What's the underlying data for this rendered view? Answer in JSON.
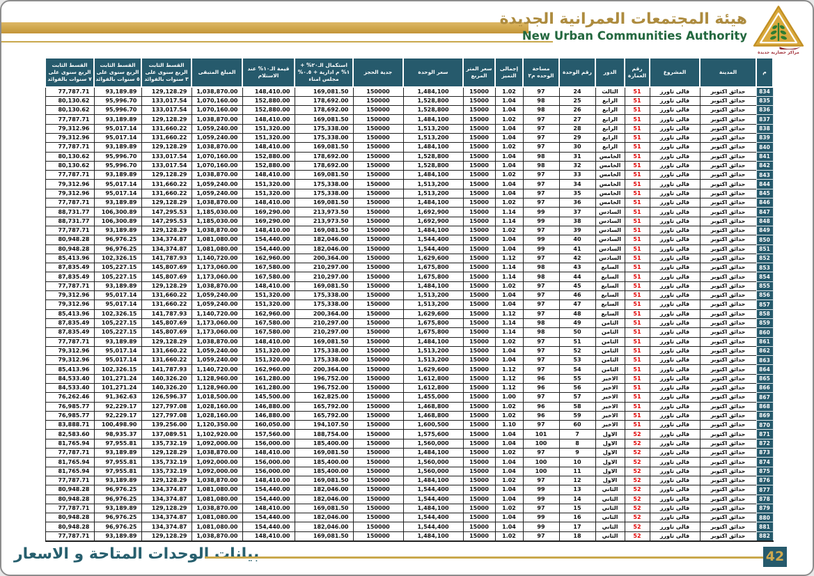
{
  "header": {
    "title_ar": "هيئة المجتمعات العمرانية الجديدة",
    "title_en": "New Urban Communities Authority",
    "logo_caption": "مراكز حضارية جديدة"
  },
  "footer": {
    "caption": "بيانات الوحدات المتاحة و الاسعار",
    "page_number": "42"
  },
  "colors": {
    "teal": "#265a6c",
    "gold": "#c9a84c",
    "red": "#e00000",
    "green": "#23683f",
    "title_gold": "#ad8b3e"
  },
  "table": {
    "headers": [
      "م",
      "المدينة",
      "المشروع",
      "رقم العمارة",
      "الدور",
      "رقم الوحدة",
      "مساحة الوحده م٢",
      "إجمالى التميز",
      "سعر المتر المربع",
      "سعر الوحدة",
      "جدية الحجز",
      "استكمال الـ٢٠% + ١% م ادارية + ٠.٥% مجلس امناء",
      "قيمة الـ١٠% عند الاستلام",
      "المبلغ المتبقى",
      "القسط الثابت الربع سنوى على ٣ سنوات بالفوائد",
      "القسط الثابت الربع سنوى على ٥ سنوات بالفوائد",
      "القسط الثابت الربع سنوى على ٧ سنوات بالفوائد"
    ],
    "rows": [
      [
        "834",
        "حدائق اكتوبر",
        "فالى تاورز",
        "51",
        "الثالث",
        "24",
        "97",
        "1.02",
        "15000",
        "1,484,100",
        "150000",
        "169,081.50",
        "148,410.00",
        "1,038,870.00",
        "129,128.29",
        "93,189.89",
        "77,787.71"
      ],
      [
        "835",
        "حدائق اكتوبر",
        "فالى تاورز",
        "51",
        "الرابع",
        "25",
        "98",
        "1.04",
        "15000",
        "1,528,800",
        "150000",
        "178,692.00",
        "152,880.00",
        "1,070,160.00",
        "133,017.54",
        "95,996.70",
        "80,130.62"
      ],
      [
        "836",
        "حدائق اكتوبر",
        "فالى تاورز",
        "51",
        "الرابع",
        "26",
        "98",
        "1.04",
        "15000",
        "1,528,800",
        "150000",
        "178,692.00",
        "152,880.00",
        "1,070,160.00",
        "133,017.54",
        "95,996.70",
        "80,130.62"
      ],
      [
        "837",
        "حدائق اكتوبر",
        "فالى تاورز",
        "51",
        "الرابع",
        "27",
        "97",
        "1.02",
        "15000",
        "1,484,100",
        "150000",
        "169,081.50",
        "148,410.00",
        "1,038,870.00",
        "129,128.29",
        "93,189.89",
        "77,787.71"
      ],
      [
        "838",
        "حدائق اكتوبر",
        "فالى تاورز",
        "51",
        "الرابع",
        "28",
        "97",
        "1.04",
        "15000",
        "1,513,200",
        "150000",
        "175,338.00",
        "151,320.00",
        "1,059,240.00",
        "131,660.22",
        "95,017.14",
        "79,312.96"
      ],
      [
        "839",
        "حدائق اكتوبر",
        "فالى تاورز",
        "51",
        "الرابع",
        "29",
        "97",
        "1.04",
        "15000",
        "1,513,200",
        "150000",
        "175,338.00",
        "151,320.00",
        "1,059,240.00",
        "131,660.22",
        "95,017.14",
        "79,312.96"
      ],
      [
        "840",
        "حدائق اكتوبر",
        "فالى تاورز",
        "51",
        "الرابع",
        "30",
        "97",
        "1.02",
        "15000",
        "1,484,100",
        "150000",
        "169,081.50",
        "148,410.00",
        "1,038,870.00",
        "129,128.29",
        "93,189.89",
        "77,787.71"
      ],
      [
        "841",
        "حدائق اكتوبر",
        "فالى تاورز",
        "51",
        "الخامس",
        "31",
        "98",
        "1.04",
        "15000",
        "1,528,800",
        "150000",
        "178,692.00",
        "152,880.00",
        "1,070,160.00",
        "133,017.54",
        "95,996.70",
        "80,130.62"
      ],
      [
        "842",
        "حدائق اكتوبر",
        "فالى تاورز",
        "51",
        "الخامس",
        "32",
        "98",
        "1.04",
        "15000",
        "1,528,800",
        "150000",
        "178,692.00",
        "152,880.00",
        "1,070,160.00",
        "133,017.54",
        "95,996.70",
        "80,130.62"
      ],
      [
        "843",
        "حدائق اكتوبر",
        "فالى تاورز",
        "51",
        "الخامس",
        "33",
        "97",
        "1.02",
        "15000",
        "1,484,100",
        "150000",
        "169,081.50",
        "148,410.00",
        "1,038,870.00",
        "129,128.29",
        "93,189.89",
        "77,787.71"
      ],
      [
        "844",
        "حدائق اكتوبر",
        "فالى تاورز",
        "51",
        "الخامس",
        "34",
        "97",
        "1.04",
        "15000",
        "1,513,200",
        "150000",
        "175,338.00",
        "151,320.00",
        "1,059,240.00",
        "131,660.22",
        "95,017.14",
        "79,312.96"
      ],
      [
        "845",
        "حدائق اكتوبر",
        "فالى تاورز",
        "51",
        "الخامس",
        "35",
        "97",
        "1.04",
        "15000",
        "1,513,200",
        "150000",
        "175,338.00",
        "151,320.00",
        "1,059,240.00",
        "131,660.22",
        "95,017.14",
        "79,312.96"
      ],
      [
        "846",
        "حدائق اكتوبر",
        "فالى تاورز",
        "51",
        "الخامس",
        "36",
        "97",
        "1.02",
        "15000",
        "1,484,100",
        "150000",
        "169,081.50",
        "148,410.00",
        "1,038,870.00",
        "129,128.29",
        "93,189.89",
        "77,787.71"
      ],
      [
        "847",
        "حدائق اكتوبر",
        "فالى تاورز",
        "51",
        "السادس",
        "37",
        "99",
        "1.14",
        "15000",
        "1,692,900",
        "150000",
        "213,973.50",
        "169,290.00",
        "1,185,030.00",
        "147,295.53",
        "106,300.89",
        "88,731.77"
      ],
      [
        "848",
        "حدائق اكتوبر",
        "فالى تاورز",
        "51",
        "السادس",
        "38",
        "99",
        "1.14",
        "15000",
        "1,692,900",
        "150000",
        "213,973.50",
        "169,290.00",
        "1,185,030.00",
        "147,295.53",
        "106,300.89",
        "88,731.77"
      ],
      [
        "849",
        "حدائق اكتوبر",
        "فالى تاورز",
        "51",
        "السادس",
        "39",
        "97",
        "1.02",
        "15000",
        "1,484,100",
        "150000",
        "169,081.50",
        "148,410.00",
        "1,038,870.00",
        "129,128.29",
        "93,189.89",
        "77,787.71"
      ],
      [
        "850",
        "حدائق اكتوبر",
        "فالى تاورز",
        "51",
        "السادس",
        "40",
        "99",
        "1.04",
        "15000",
        "1,544,400",
        "150000",
        "182,046.00",
        "154,440.00",
        "1,081,080.00",
        "134,374.87",
        "96,976.25",
        "80,948.28"
      ],
      [
        "851",
        "حدائق اكتوبر",
        "فالى تاورز",
        "51",
        "السادس",
        "41",
        "99",
        "1.04",
        "15000",
        "1,544,400",
        "150000",
        "182,046.00",
        "154,440.00",
        "1,081,080.00",
        "134,374.87",
        "96,976.25",
        "80,948.28"
      ],
      [
        "852",
        "حدائق اكتوبر",
        "فالى تاورز",
        "51",
        "السادس",
        "42",
        "97",
        "1.12",
        "15000",
        "1,629,600",
        "150000",
        "200,364.00",
        "162,960.00",
        "1,140,720.00",
        "141,787.93",
        "102,326.15",
        "85,413.96"
      ],
      [
        "853",
        "حدائق اكتوبر",
        "فالى تاورز",
        "51",
        "السابع",
        "43",
        "98",
        "1.14",
        "15000",
        "1,675,800",
        "150000",
        "210,297.00",
        "167,580.00",
        "1,173,060.00",
        "145,807.69",
        "105,227.15",
        "87,835.49"
      ],
      [
        "854",
        "حدائق اكتوبر",
        "فالى تاورز",
        "51",
        "السابع",
        "44",
        "98",
        "1.14",
        "15000",
        "1,675,800",
        "150000",
        "210,297.00",
        "167,580.00",
        "1,173,060.00",
        "145,807.69",
        "105,227.15",
        "87,835.49"
      ],
      [
        "855",
        "حدائق اكتوبر",
        "فالى تاورز",
        "51",
        "السابع",
        "45",
        "97",
        "1.02",
        "15000",
        "1,484,100",
        "150000",
        "169,081.50",
        "148,410.00",
        "1,038,870.00",
        "129,128.29",
        "93,189.89",
        "77,787.71"
      ],
      [
        "856",
        "حدائق اكتوبر",
        "فالى تاورز",
        "51",
        "السابع",
        "46",
        "97",
        "1.04",
        "15000",
        "1,513,200",
        "150000",
        "175,338.00",
        "151,320.00",
        "1,059,240.00",
        "131,660.22",
        "95,017.14",
        "79,312.96"
      ],
      [
        "857",
        "حدائق اكتوبر",
        "فالى تاورز",
        "51",
        "السابع",
        "47",
        "97",
        "1.04",
        "15000",
        "1,513,200",
        "150000",
        "175,338.00",
        "151,320.00",
        "1,059,240.00",
        "131,660.22",
        "95,017.14",
        "79,312.96"
      ],
      [
        "858",
        "حدائق اكتوبر",
        "فالى تاورز",
        "51",
        "السابع",
        "48",
        "97",
        "1.12",
        "15000",
        "1,629,600",
        "150000",
        "200,364.00",
        "162,960.00",
        "1,140,720.00",
        "141,787.93",
        "102,326.15",
        "85,413.96"
      ],
      [
        "859",
        "حدائق اكتوبر",
        "فالى تاورز",
        "51",
        "الثامن",
        "49",
        "98",
        "1.14",
        "15000",
        "1,675,800",
        "150000",
        "210,297.00",
        "167,580.00",
        "1,173,060.00",
        "145,807.69",
        "105,227.15",
        "87,835.49"
      ],
      [
        "860",
        "حدائق اكتوبر",
        "فالى تاورز",
        "51",
        "الثامن",
        "50",
        "98",
        "1.14",
        "15000",
        "1,675,800",
        "150000",
        "210,297.00",
        "167,580.00",
        "1,173,060.00",
        "145,807.69",
        "105,227.15",
        "87,835.49"
      ],
      [
        "861",
        "حدائق اكتوبر",
        "فالى تاورز",
        "51",
        "الثامن",
        "51",
        "97",
        "1.02",
        "15000",
        "1,484,100",
        "150000",
        "169,081.50",
        "148,410.00",
        "1,038,870.00",
        "129,128.29",
        "93,189.89",
        "77,787.71"
      ],
      [
        "862",
        "حدائق اكتوبر",
        "فالى تاورز",
        "51",
        "الثامن",
        "52",
        "97",
        "1.04",
        "15000",
        "1,513,200",
        "150000",
        "175,338.00",
        "151,320.00",
        "1,059,240.00",
        "131,660.22",
        "95,017.14",
        "79,312.96"
      ],
      [
        "863",
        "حدائق اكتوبر",
        "فالى تاورز",
        "51",
        "الثامن",
        "53",
        "97",
        "1.04",
        "15000",
        "1,513,200",
        "150000",
        "175,338.00",
        "151,320.00",
        "1,059,240.00",
        "131,660.22",
        "95,017.14",
        "79,312.96"
      ],
      [
        "864",
        "حدائق اكتوبر",
        "فالى تاورز",
        "51",
        "الثامن",
        "54",
        "97",
        "1.12",
        "15000",
        "1,629,600",
        "150000",
        "200,364.00",
        "162,960.00",
        "1,140,720.00",
        "141,787.93",
        "102,326.15",
        "85,413.96"
      ],
      [
        "865",
        "حدائق اكتوبر",
        "فالى تاورز",
        "51",
        "الاخير",
        "55",
        "96",
        "1.12",
        "15000",
        "1,612,800",
        "150000",
        "196,752.00",
        "161,280.00",
        "1,128,960.00",
        "140,326.20",
        "101,271.24",
        "84,533.40"
      ],
      [
        "866",
        "حدائق اكتوبر",
        "فالى تاورز",
        "51",
        "الاخير",
        "56",
        "96",
        "1.12",
        "15000",
        "1,612,800",
        "150000",
        "196,752.00",
        "161,280.00",
        "1,128,960.00",
        "140,326.20",
        "101,271.24",
        "84,533.40"
      ],
      [
        "867",
        "حدائق اكتوبر",
        "فالى تاورز",
        "51",
        "الاخير",
        "57",
        "97",
        "1.00",
        "15000",
        "1,455,000",
        "150000",
        "162,825.00",
        "145,500.00",
        "1,018,500.00",
        "126,596.37",
        "91,362.63",
        "76,262.46"
      ],
      [
        "868",
        "حدائق اكتوبر",
        "فالى تاورز",
        "51",
        "الاخير",
        "58",
        "96",
        "1.02",
        "15000",
        "1,468,800",
        "150000",
        "165,792.00",
        "146,880.00",
        "1,028,160.00",
        "127,797.08",
        "92,229.17",
        "76,985.77"
      ],
      [
        "869",
        "حدائق اكتوبر",
        "فالى تاورز",
        "51",
        "الاخير",
        "59",
        "96",
        "1.02",
        "15000",
        "1,468,800",
        "150000",
        "165,792.00",
        "146,880.00",
        "1,028,160.00",
        "127,797.08",
        "92,229.17",
        "76,985.77"
      ],
      [
        "870",
        "حدائق اكتوبر",
        "فالى تاورز",
        "51",
        "الاخير",
        "60",
        "97",
        "1.10",
        "15000",
        "1,600,500",
        "150000",
        "194,107.50",
        "160,050.00",
        "1,120,350.00",
        "139,256.00",
        "100,498.90",
        "83,888.71"
      ],
      [
        "871",
        "حدائق اكتوبر",
        "فالى تاورز",
        "52",
        "الاول",
        "7",
        "101",
        "1.04",
        "15000",
        "1,575,600",
        "150000",
        "188,754.00",
        "157,560.00",
        "1,102,920.00",
        "137,089.51",
        "98,935.37",
        "82,583.60"
      ],
      [
        "872",
        "حدائق اكتوبر",
        "فالى تاورز",
        "52",
        "الاول",
        "8",
        "100",
        "1.04",
        "15000",
        "1,560,000",
        "150000",
        "185,400.00",
        "156,000.00",
        "1,092,000.00",
        "135,732.19",
        "97,955.81",
        "81,765.94"
      ],
      [
        "873",
        "حدائق اكتوبر",
        "فالى تاورز",
        "52",
        "الاول",
        "9",
        "97",
        "1.02",
        "15000",
        "1,484,100",
        "150000",
        "169,081.50",
        "148,410.00",
        "1,038,870.00",
        "129,128.29",
        "93,189.89",
        "77,787.71"
      ],
      [
        "874",
        "حدائق اكتوبر",
        "فالى تاورز",
        "52",
        "الاول",
        "10",
        "100",
        "1.04",
        "15000",
        "1,560,000",
        "150000",
        "185,400.00",
        "156,000.00",
        "1,092,000.00",
        "135,732.19",
        "97,955.81",
        "81,765.94"
      ],
      [
        "875",
        "حدائق اكتوبر",
        "فالى تاورز",
        "52",
        "الاول",
        "11",
        "100",
        "1.04",
        "15000",
        "1,560,000",
        "150000",
        "185,400.00",
        "156,000.00",
        "1,092,000.00",
        "135,732.19",
        "97,955.81",
        "81,765.94"
      ],
      [
        "876",
        "حدائق اكتوبر",
        "فالى تاورز",
        "52",
        "الاول",
        "12",
        "97",
        "1.02",
        "15000",
        "1,484,100",
        "150000",
        "169,081.50",
        "148,410.00",
        "1,038,870.00",
        "129,128.29",
        "93,189.89",
        "77,787.71"
      ],
      [
        "877",
        "حدائق اكتوبر",
        "فالى تاورز",
        "52",
        "الثاني",
        "13",
        "99",
        "1.04",
        "15000",
        "1,544,400",
        "150000",
        "182,046.00",
        "154,440.00",
        "1,081,080.00",
        "134,374.87",
        "96,976.25",
        "80,948.28"
      ],
      [
        "878",
        "حدائق اكتوبر",
        "فالى تاورز",
        "52",
        "الثاني",
        "14",
        "99",
        "1.04",
        "15000",
        "1,544,400",
        "150000",
        "182,046.00",
        "154,440.00",
        "1,081,080.00",
        "134,374.87",
        "96,976.25",
        "80,948.28"
      ],
      [
        "879",
        "حدائق اكتوبر",
        "فالى تاورز",
        "52",
        "الثاني",
        "15",
        "97",
        "1.02",
        "15000",
        "1,484,100",
        "150000",
        "169,081.50",
        "148,410.00",
        "1,038,870.00",
        "129,128.29",
        "93,189.89",
        "77,787.71"
      ],
      [
        "880",
        "حدائق اكتوبر",
        "فالى تاورز",
        "52",
        "الثاني",
        "16",
        "99",
        "1.04",
        "15000",
        "1,544,400",
        "150000",
        "182,046.00",
        "154,440.00",
        "1,081,080.00",
        "134,374.87",
        "96,976.25",
        "80,948.28"
      ],
      [
        "881",
        "حدائق اكتوبر",
        "فالى تاورز",
        "52",
        "الثاني",
        "17",
        "99",
        "1.04",
        "15000",
        "1,544,400",
        "150000",
        "182,046.00",
        "154,440.00",
        "1,081,080.00",
        "134,374.87",
        "96,976.25",
        "80,948.28"
      ],
      [
        "882",
        "حدائق اكتوبر",
        "فالى تاورز",
        "52",
        "الثاني",
        "18",
        "97",
        "1.02",
        "15000",
        "1,484,100",
        "150000",
        "169,081.50",
        "148,410.00",
        "1,038,870.00",
        "129,128.29",
        "93,189.89",
        "77,787.71"
      ]
    ]
  }
}
